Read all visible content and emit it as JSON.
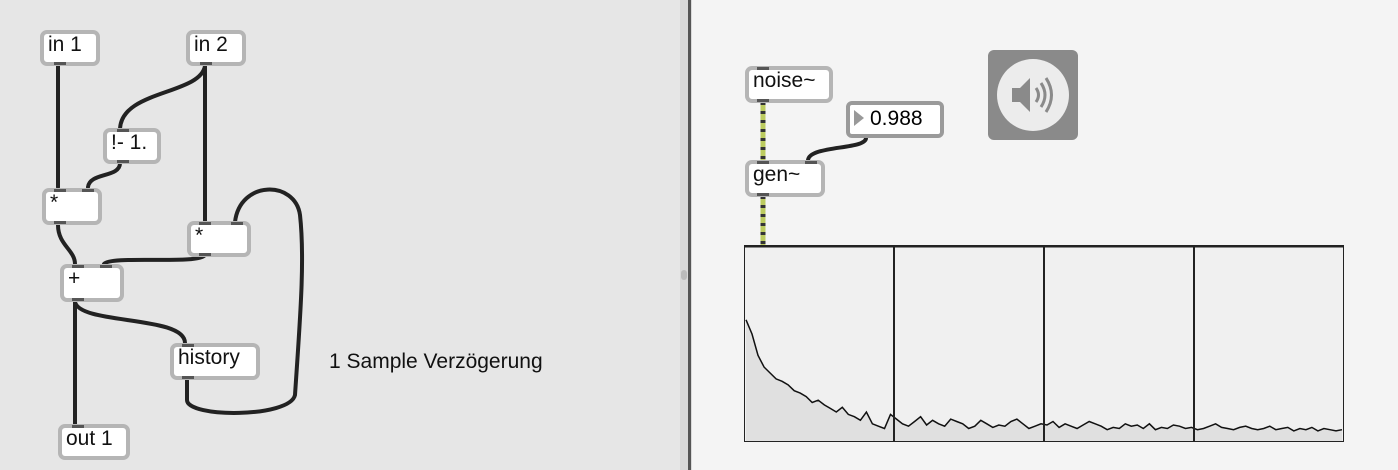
{
  "left_patcher": {
    "objects": [
      {
        "name": "in-1-object",
        "label": "in 1"
      },
      {
        "name": "in-2-object",
        "label": "in 2"
      },
      {
        "name": "not-minus-object",
        "label": "!- 1."
      },
      {
        "name": "multiply-object-1",
        "label": "*"
      },
      {
        "name": "multiply-object-2",
        "label": "*"
      },
      {
        "name": "add-object",
        "label": "+"
      },
      {
        "name": "history-object",
        "label": "history"
      },
      {
        "name": "out-1-object",
        "label": "out 1"
      }
    ],
    "comment": "1 Sample Verzögerung"
  },
  "right_patcher": {
    "noise_label": "noise~",
    "gen_label": "gen~",
    "number_value": "0.988",
    "speaker_icon": "speaker-icon",
    "spectroscope": {
      "grid_divisions": 4,
      "line_color": "#111111",
      "fill_color": "#e0e0e0",
      "background": "#f0f0f0",
      "trace": [
        1.0,
        0.88,
        0.7,
        0.6,
        0.55,
        0.5,
        0.48,
        0.45,
        0.4,
        0.38,
        0.35,
        0.3,
        0.32,
        0.28,
        0.25,
        0.22,
        0.26,
        0.2,
        0.18,
        0.15,
        0.22,
        0.12,
        0.1,
        0.08,
        0.2,
        0.16,
        0.12,
        0.1,
        0.14,
        0.18,
        0.11,
        0.15,
        0.12,
        0.1,
        0.16,
        0.14,
        0.12,
        0.08,
        0.1,
        0.15,
        0.12,
        0.09,
        0.11,
        0.1,
        0.14,
        0.16,
        0.12,
        0.08,
        0.1,
        0.12,
        0.11,
        0.14,
        0.09,
        0.12,
        0.1,
        0.08,
        0.11,
        0.14,
        0.12,
        0.1,
        0.07,
        0.09,
        0.08,
        0.12,
        0.1,
        0.11,
        0.08,
        0.12,
        0.07,
        0.09,
        0.08,
        0.11,
        0.1,
        0.08,
        0.09,
        0.07,
        0.08,
        0.1,
        0.12,
        0.09,
        0.08,
        0.07,
        0.09,
        0.1,
        0.08,
        0.07,
        0.08,
        0.1,
        0.07,
        0.08,
        0.09,
        0.06,
        0.08,
        0.07,
        0.09,
        0.06,
        0.08,
        0.07,
        0.06,
        0.07
      ]
    }
  }
}
